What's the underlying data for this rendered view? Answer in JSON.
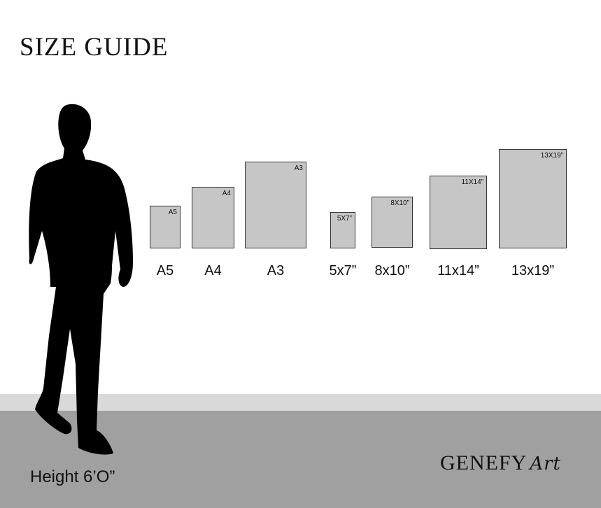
{
  "title": "SIZE GUIDE",
  "frames": [
    {
      "tag": "A5",
      "label": "A5"
    },
    {
      "tag": "A4",
      "label": "A4"
    },
    {
      "tag": "A3",
      "label": "A3"
    },
    {
      "tag": "5X7”",
      "label": "5x7”"
    },
    {
      "tag": "8X10”",
      "label": "8x10”"
    },
    {
      "tag": "11X14”",
      "label": "11x14”"
    },
    {
      "tag": "13X19”",
      "label": "13x19”"
    }
  ],
  "person_height": "Height 6’O”",
  "logo": {
    "brand": "GENEFY",
    "script": "Art"
  },
  "colors": {
    "frame_fill": "#c6c6c6",
    "floor_light": "#d9d9d9",
    "floor_dark": "#a0a0a0"
  }
}
